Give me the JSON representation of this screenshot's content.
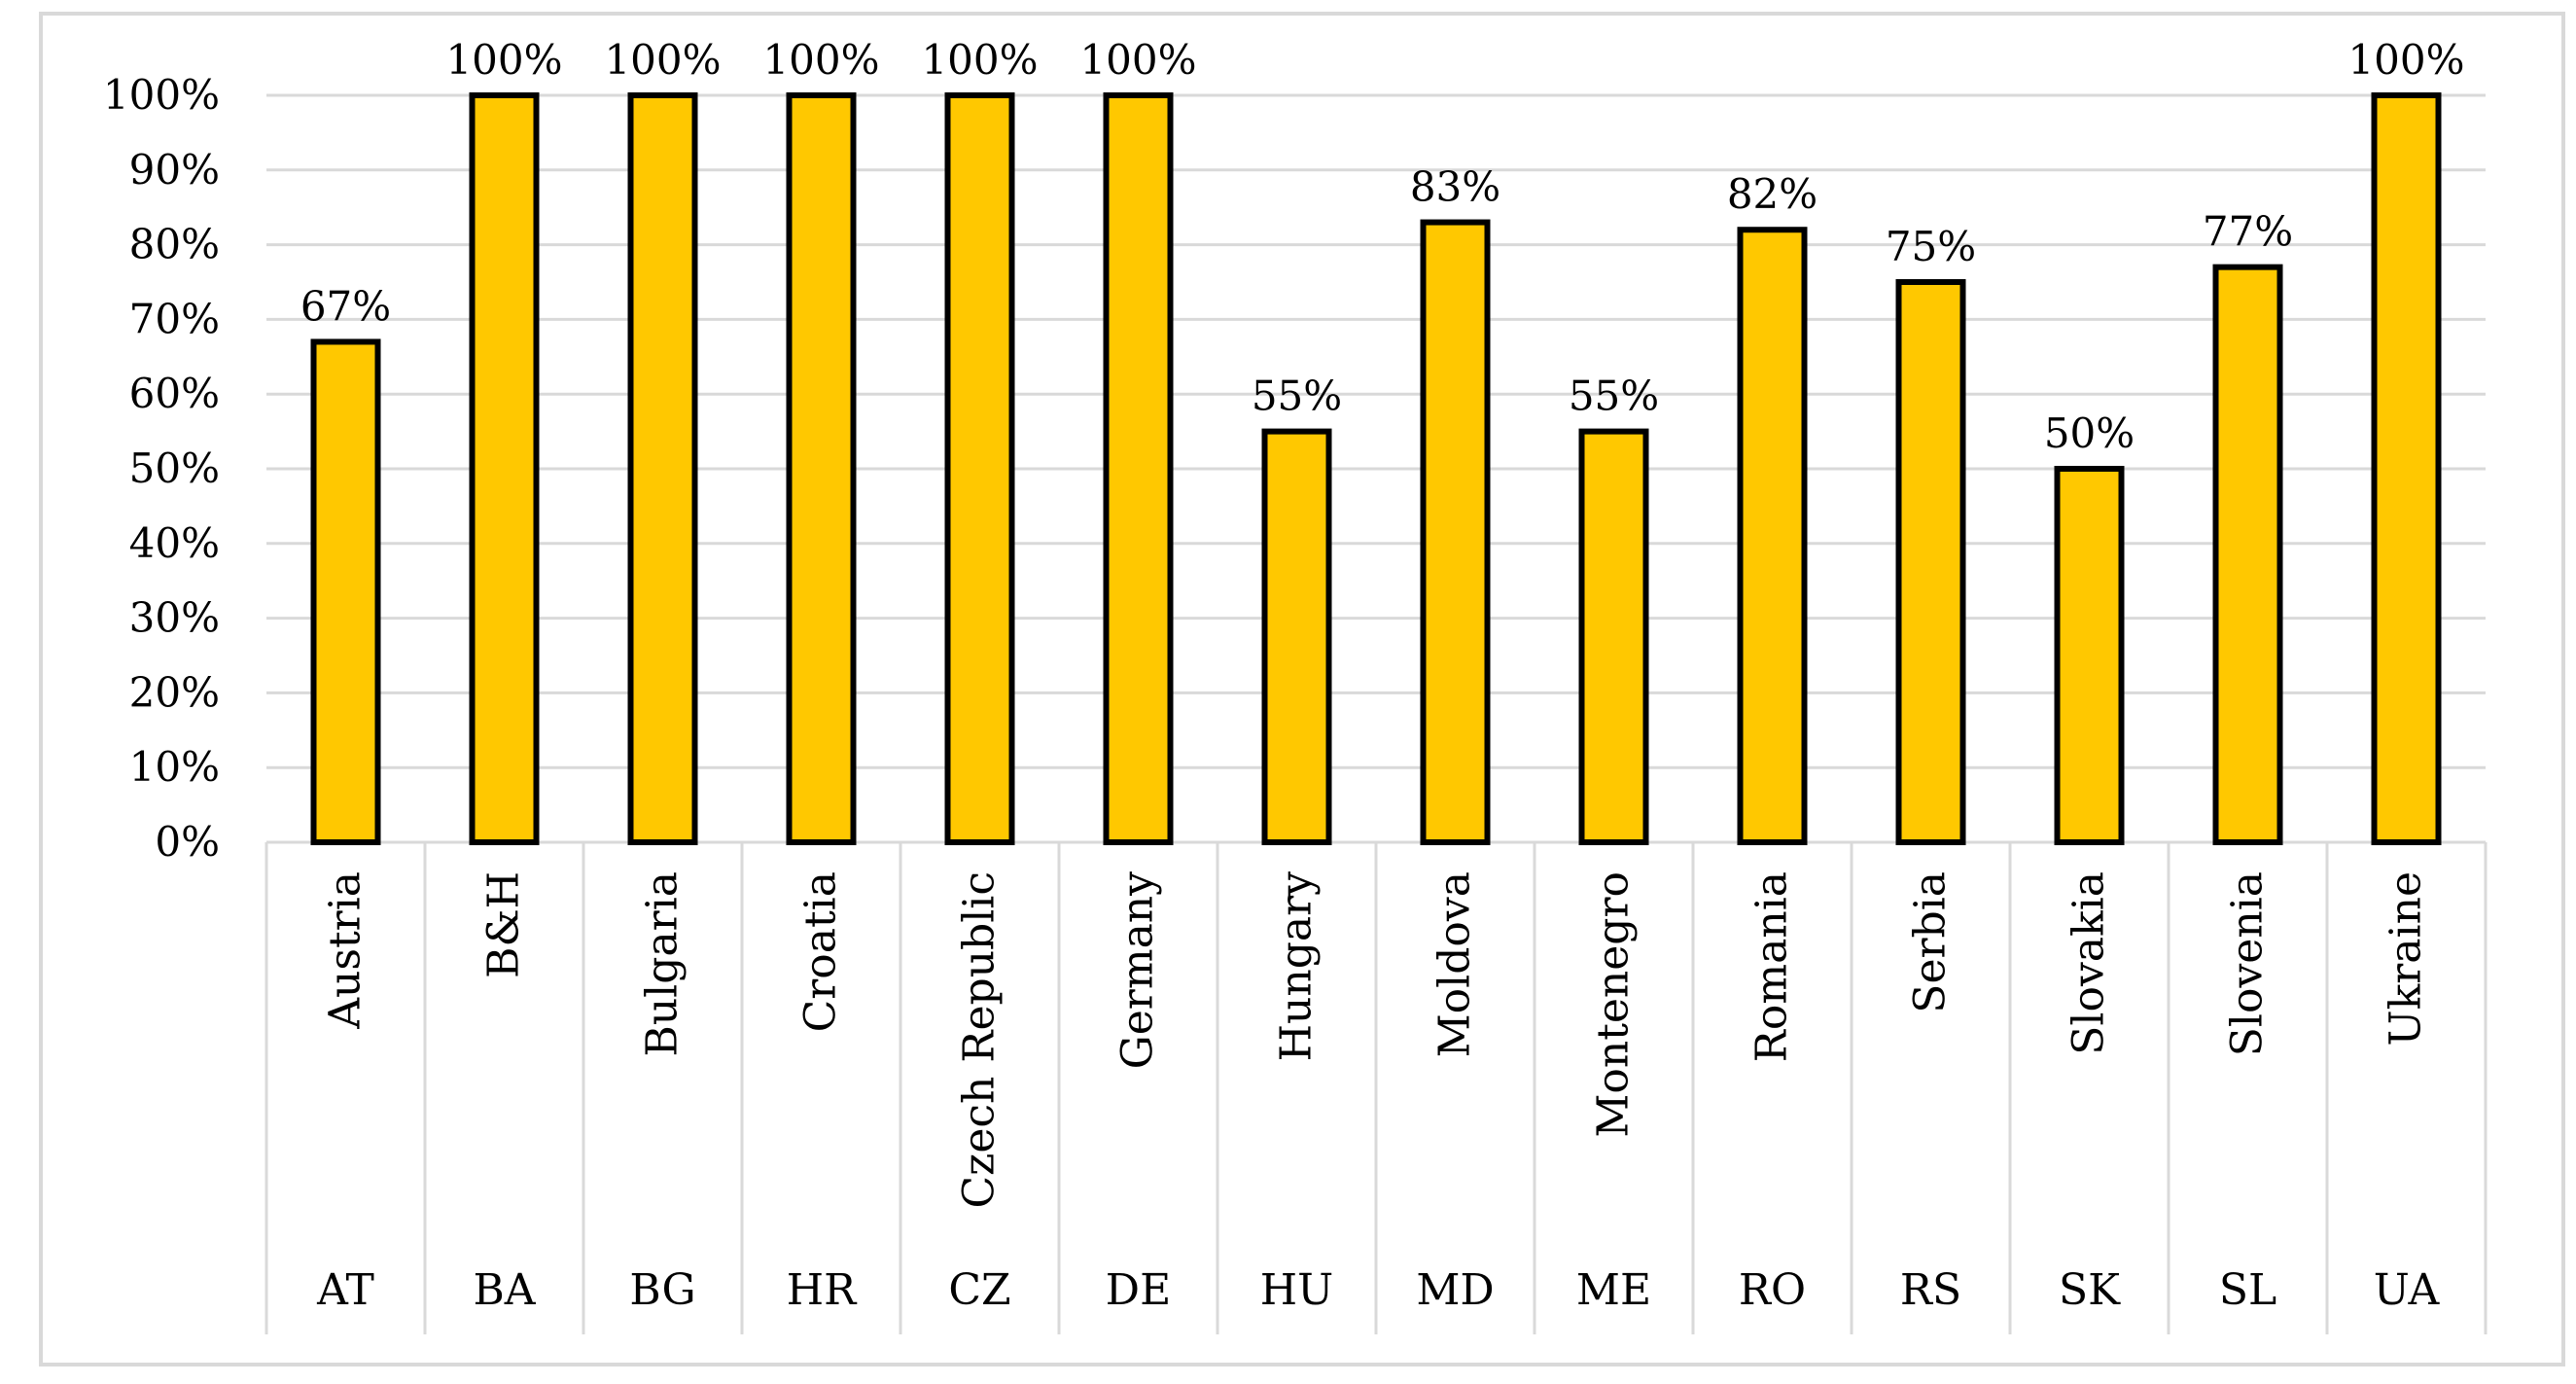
{
  "chart_data": {
    "type": "bar",
    "categories": [
      "Austria",
      "B&H",
      "Bulgaria",
      "Croatia",
      "Czech Republic",
      "Germany",
      "Hungary",
      "Moldova",
      "Montenegro",
      "Romania",
      "Serbia",
      "Slovakia",
      "Slovenia",
      "Ukraine"
    ],
    "codes": [
      "AT",
      "BA",
      "BG",
      "HR",
      "CZ",
      "DE",
      "HU",
      "MD",
      "ME",
      "RO",
      "RS",
      "SK",
      "SL",
      "UA"
    ],
    "values": [
      67,
      100,
      100,
      100,
      100,
      100,
      55,
      83,
      55,
      82,
      75,
      50,
      77,
      100
    ],
    "data_labels": [
      "67%",
      "100%",
      "100%",
      "100%",
      "100%",
      "100%",
      "55%",
      "83%",
      "55%",
      "82%",
      "75%",
      "50%",
      "77%",
      "100%"
    ],
    "yticks": [
      "0%",
      "10%",
      "20%",
      "30%",
      "40%",
      "50%",
      "60%",
      "70%",
      "80%",
      "90%",
      "100%"
    ],
    "ylim": [
      0,
      100
    ],
    "title": "",
    "xlabel": "",
    "ylabel": "",
    "grid": true,
    "colors": {
      "bar": "#FFC800",
      "bar_edge": "#000000",
      "grid": "#d9d9d9",
      "frame": "#d9d9d9"
    }
  }
}
